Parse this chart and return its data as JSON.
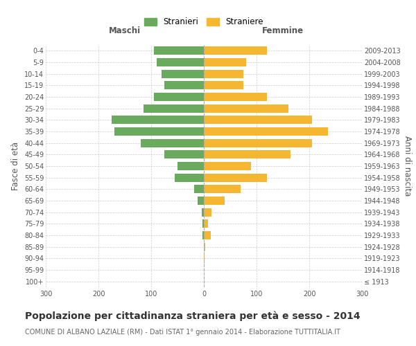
{
  "age_groups": [
    "100+",
    "95-99",
    "90-94",
    "85-89",
    "80-84",
    "75-79",
    "70-74",
    "65-69",
    "60-64",
    "55-59",
    "50-54",
    "45-49",
    "40-44",
    "35-39",
    "30-34",
    "25-29",
    "20-24",
    "15-19",
    "10-14",
    "5-9",
    "0-4"
  ],
  "birth_years": [
    "≤ 1913",
    "1914-1918",
    "1919-1923",
    "1924-1928",
    "1929-1933",
    "1934-1938",
    "1939-1943",
    "1944-1948",
    "1949-1953",
    "1954-1958",
    "1959-1963",
    "1964-1968",
    "1969-1973",
    "1974-1978",
    "1979-1983",
    "1984-1988",
    "1989-1993",
    "1994-1998",
    "1999-2003",
    "2004-2008",
    "2009-2013"
  ],
  "maschi": [
    0,
    0,
    0,
    0,
    3,
    2,
    4,
    12,
    18,
    55,
    50,
    75,
    120,
    170,
    175,
    115,
    95,
    75,
    80,
    90,
    95
  ],
  "femmine": [
    0,
    0,
    1,
    2,
    13,
    8,
    15,
    40,
    70,
    120,
    90,
    165,
    205,
    235,
    205,
    160,
    120,
    75,
    75,
    80,
    120
  ],
  "maschi_color": "#6aaa5e",
  "femmine_color": "#f5b731",
  "background_color": "#ffffff",
  "grid_color": "#cccccc",
  "title": "Popolazione per cittadinanza straniera per età e sesso - 2014",
  "subtitle": "COMUNE DI ALBANO LAZIALE (RM) - Dati ISTAT 1° gennaio 2014 - Elaborazione TUTTITALIA.IT",
  "ylabel_left": "Fasce di età",
  "ylabel_right": "Anni di nascita",
  "xlabel_maschi": "Maschi",
  "xlabel_femmine": "Femmine",
  "legend_maschi": "Stranieri",
  "legend_femmine": "Straniere",
  "xlim": 300,
  "bar_height": 0.72,
  "center_line_color": "#aaaaaa",
  "title_fontsize": 10,
  "subtitle_fontsize": 7,
  "tick_fontsize": 7,
  "label_fontsize": 8.5,
  "legend_fontsize": 8.5
}
